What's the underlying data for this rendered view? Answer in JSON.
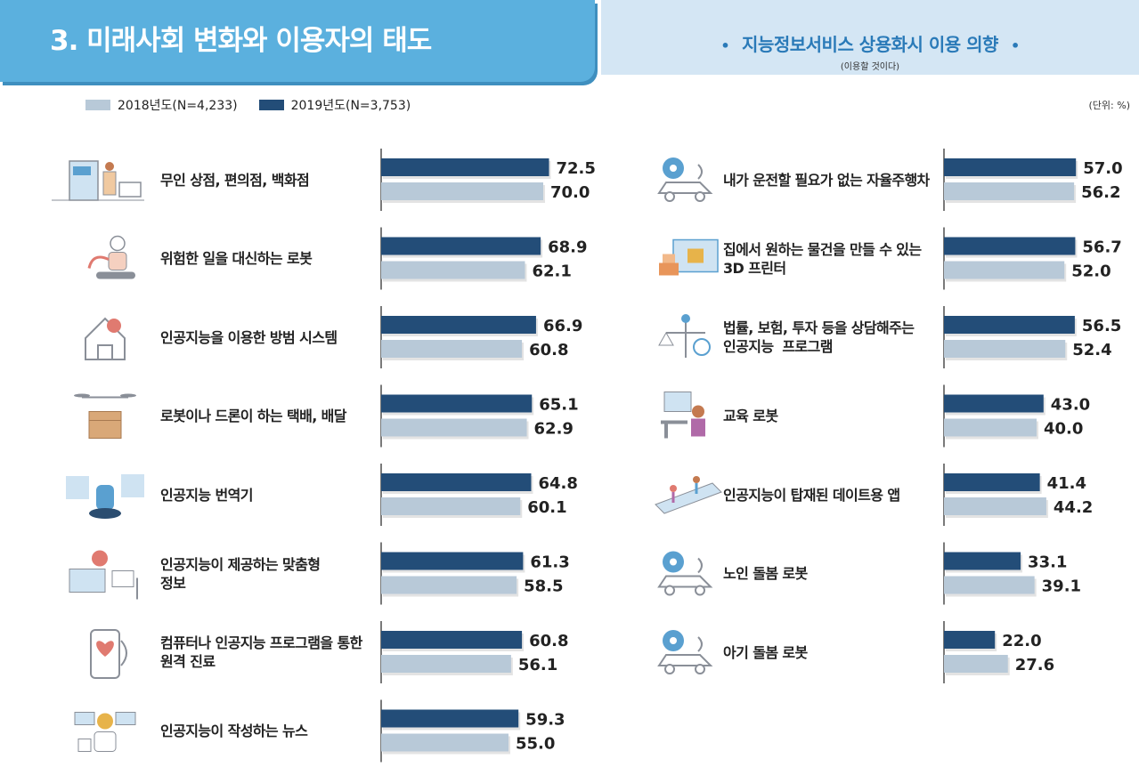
{
  "header": {
    "section_title": "3. 미래사회 변화와 이용자의 태도",
    "subtitle": "지능정보서비스 상용화시 이용 의향",
    "subtitle_bullet": "•",
    "subtitle_note": "(이용할 것이다)",
    "unit": "(단위: %)"
  },
  "legend": [
    {
      "label": "2018년도(N=4,233)",
      "color": "#b8c9d8"
    },
    {
      "label": "2019년도(N=3,753)",
      "color": "#234d78"
    }
  ],
  "chart_data": [
    {
      "type": "bar",
      "orientation": "horizontal",
      "categories": [
        "무인 상점, 편의점, 백화점",
        "위험한 일을 대신하는 로봇",
        "인공지능을 이용한 방범 시스템",
        "로봇이나 드론이 하는 택배, 배달",
        "인공지능 번역기",
        "인공지능이 제공하는 맞춤형\n정보",
        "컴퓨터나 인공지능 프로그램을 통한\n원격 진료",
        "인공지능이 작성하는 뉴스"
      ],
      "series": [
        {
          "name": "2019년도(N=3,753)",
          "values": [
            72.5,
            68.9,
            66.9,
            65.1,
            64.8,
            61.3,
            60.8,
            59.3
          ]
        },
        {
          "name": "2018년도(N=4,233)",
          "values": [
            70.0,
            62.1,
            60.8,
            62.9,
            60.1,
            58.5,
            56.1,
            55.0
          ]
        }
      ],
      "unit": "%"
    },
    {
      "type": "bar",
      "orientation": "horizontal",
      "categories": [
        "내가 운전할 필요가 없는 자율주행차",
        "집에서 원하는 물건을 만들 수 있는\n3D 프린터",
        "법률, 보험, 투자 등을 상담해주는\n인공지능  프로그램",
        "교육 로봇",
        "인공지능이 탑재된 데이트용 앱",
        "노인 돌봄 로봇",
        "아기 돌봄 로봇"
      ],
      "series": [
        {
          "name": "2019년도(N=3,753)",
          "values": [
            57.0,
            56.7,
            56.5,
            43.0,
            41.4,
            33.1,
            22.0
          ]
        },
        {
          "name": "2018년도(N=4,233)",
          "values": [
            56.2,
            52.0,
            52.4,
            40.0,
            44.2,
            39.1,
            27.6
          ]
        }
      ],
      "unit": "%"
    }
  ],
  "colors": {
    "header_blue": "#5bb0de",
    "header_light": "#d4e6f4",
    "subtitle_text": "#2a7ab8",
    "bar_2019": "#234d78",
    "bar_2018": "#b8c9d8"
  },
  "icons": {
    "left": [
      "store-icon",
      "robot-arm-icon",
      "home-security-icon",
      "drone-delivery-icon",
      "translator-icon",
      "personalized-info-icon",
      "telemedicine-icon",
      "ai-news-icon"
    ],
    "right": [
      "self-driving-car-icon",
      "3d-printer-icon",
      "legal-ai-icon",
      "education-robot-icon",
      "dating-app-icon",
      "elderly-care-robot-icon",
      "baby-care-robot-icon"
    ]
  }
}
